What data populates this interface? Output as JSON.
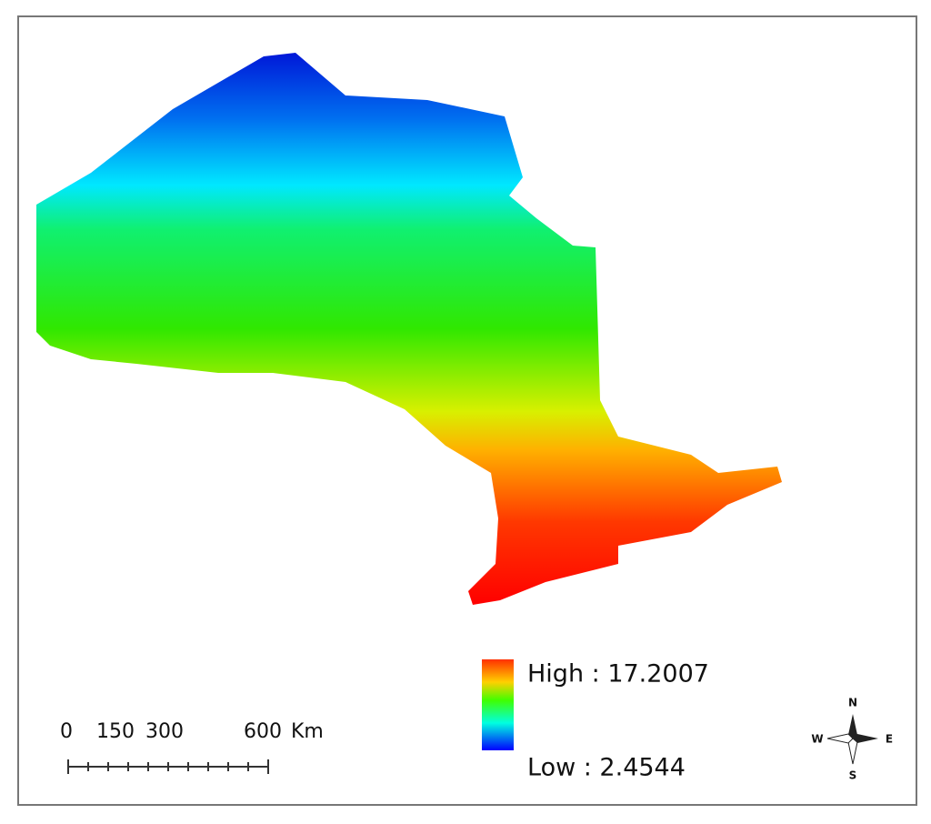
{
  "legend": {
    "high": "High : 17.2007",
    "low": "Low : 2.4544"
  },
  "scale_bar": {
    "labels": [
      "0",
      "150",
      "300",
      "600"
    ],
    "unit": "Km"
  },
  "compass": {
    "n": "N",
    "s": "S",
    "e": "E",
    "w": "W"
  }
}
